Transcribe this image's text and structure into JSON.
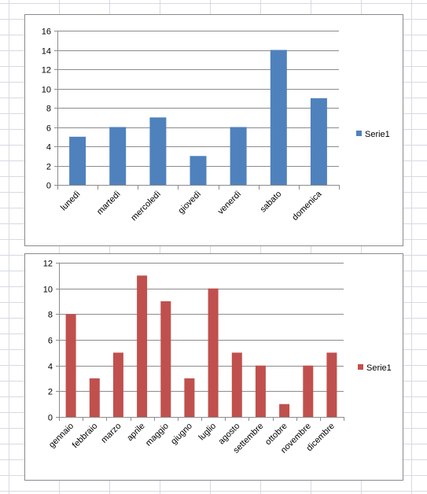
{
  "chart_data": [
    {
      "type": "bar",
      "categories": [
        "lunedì",
        "martedì",
        "mercoledì",
        "giovedì",
        "venerdì",
        "sabato",
        "domenica"
      ],
      "series": [
        {
          "name": "Serie1",
          "values": [
            5,
            6,
            7,
            3,
            6,
            14,
            9
          ],
          "color": "#4f81bd"
        }
      ],
      "ylim": [
        0,
        16
      ],
      "yticks": [
        0,
        2,
        4,
        6,
        8,
        10,
        12,
        14,
        16
      ],
      "grid": true,
      "legend": "right"
    },
    {
      "type": "bar",
      "categories": [
        "gennaio",
        "febbraio",
        "marzo",
        "aprile",
        "maggio",
        "giugno",
        "luglio",
        "agosto",
        "settembre",
        "ottobre",
        "novembre",
        "dicembre"
      ],
      "series": [
        {
          "name": "Serie1",
          "values": [
            8,
            3,
            5,
            11,
            9,
            3,
            10,
            5,
            4,
            1,
            4,
            5
          ],
          "color": "#c0504d"
        }
      ],
      "ylim": [
        0,
        12
      ],
      "yticks": [
        0,
        2,
        4,
        6,
        8,
        10,
        12
      ],
      "grid": true,
      "legend": "right"
    }
  ]
}
